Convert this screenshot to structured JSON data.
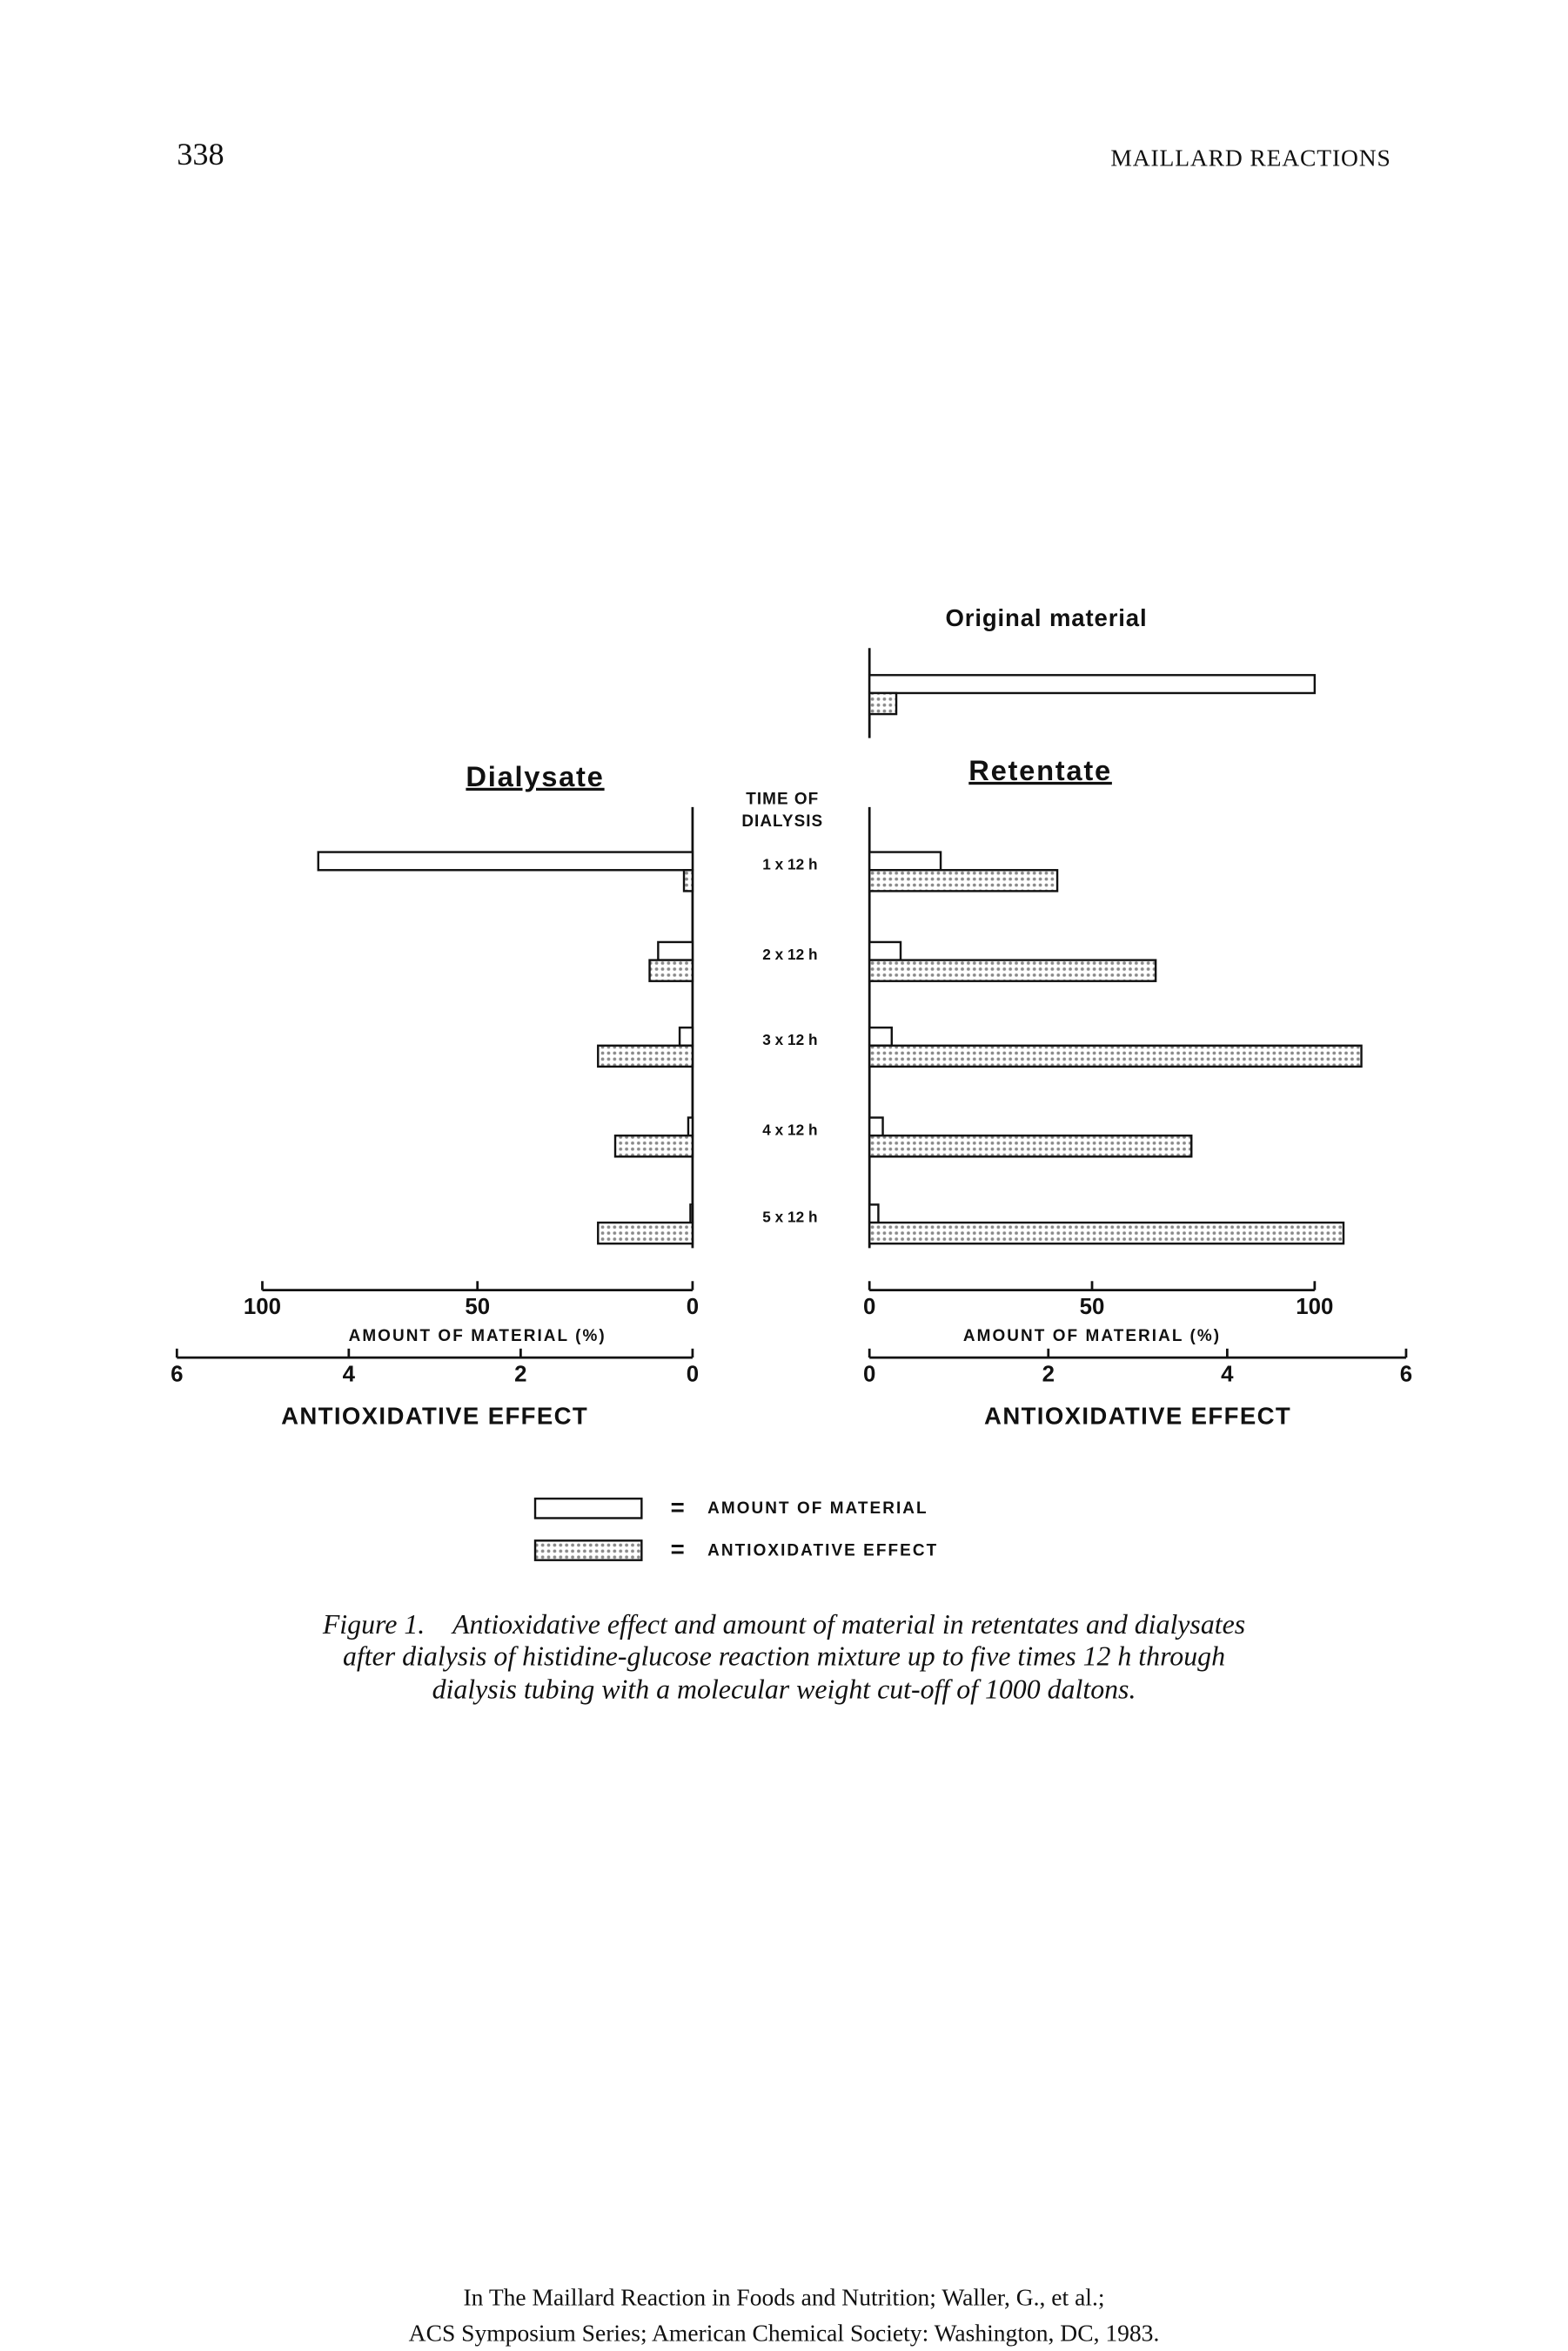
{
  "header": {
    "page_number": "338",
    "running_title": "MAILLARD REACTIONS"
  },
  "chart_data": {
    "type": "bar",
    "orientation": "horizontal",
    "category_title": [
      "TIME OF",
      "DIALYSIS"
    ],
    "categories": [
      "1 x 12 h",
      "2 x 12 h",
      "3 x 12 h",
      "4 x 12 h",
      "5 x 12 h"
    ],
    "series": [
      {
        "name": "AMOUNT OF MATERIAL",
        "color": "#ffffff",
        "axis": "x"
      },
      {
        "name": "ANTIOXIDATIVE EFFECT",
        "color": "#8a8a8a",
        "pattern": "dots",
        "axis": "x2"
      }
    ],
    "panels": [
      {
        "title": "Dialysate",
        "direction": "left",
        "series": [
          {
            "values": [
              87,
              8,
              3,
              1,
              0.5
            ]
          },
          {
            "values": [
              0.1,
              0.5,
              1.1,
              0.9,
              1.1
            ]
          }
        ]
      },
      {
        "title": "Retentate",
        "direction": "right",
        "series": [
          {
            "values": [
              16,
              7,
              5,
              3,
              2
            ]
          },
          {
            "values": [
              2.1,
              3.2,
              5.5,
              3.6,
              5.3
            ]
          }
        ],
        "original": {
          "title": "Original material",
          "values": [
            100,
            0.3
          ]
        }
      }
    ],
    "xlabel": "AMOUNT OF MATERIAL (%)",
    "xlim": [
      0,
      100
    ],
    "xticks": [
      0,
      50,
      100
    ],
    "x2label": "ANTIOXIDATIVE EFFECT",
    "x2lim": [
      0,
      6
    ],
    "x2ticks": [
      0,
      2,
      4,
      6
    ]
  },
  "caption": {
    "label": "Figure 1.",
    "lines": [
      "Antioxidative effect and amount of material in retentates and dialysates",
      "after dialysis of histidine-glucose reaction mixture up to five times 12 h through",
      "dialysis tubing with a molecular weight cut-off of 1000 daltons."
    ]
  },
  "footer": {
    "lines": [
      "In The Maillard Reaction in Foods and Nutrition; Waller, G., et al.;",
      "ACS Symposium Series; American Chemical Society: Washington, DC, 1983."
    ]
  }
}
